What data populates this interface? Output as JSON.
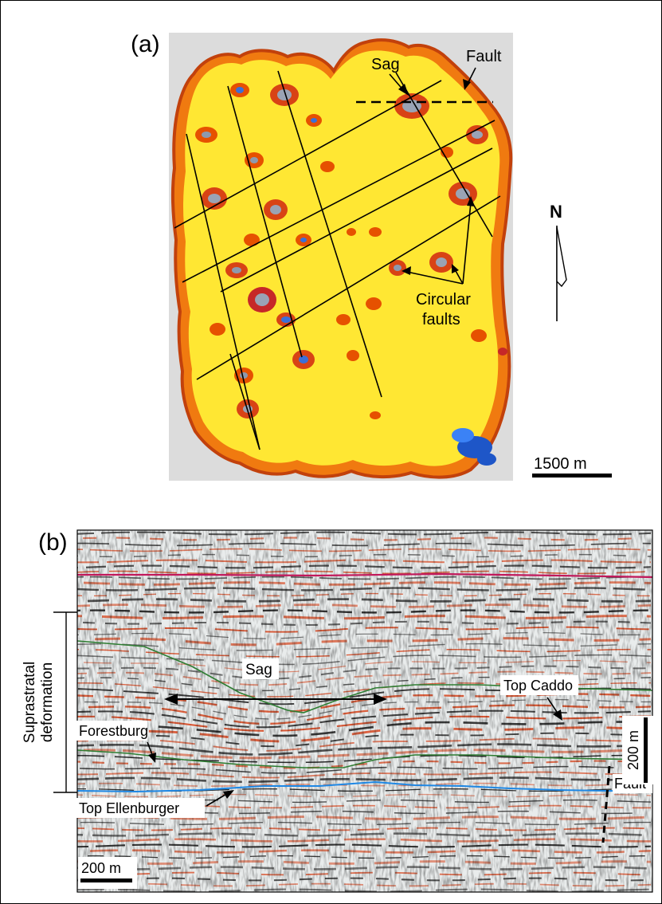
{
  "panel_a": {
    "label": "(a)",
    "sag": "Sag",
    "fault": "Fault",
    "circular_faults_line1": "Circular",
    "circular_faults_line2": "faults",
    "north": "N",
    "scale_bar": "1500 m"
  },
  "panel_b": {
    "label": "(b)",
    "sag": "Sag",
    "top_caddo": "Top Caddo",
    "forestburg": "Forestburg",
    "top_ellenburger": "Top Ellenburger",
    "fault": "Fault",
    "suprastratal_line1": "Suprastratal",
    "suprastratal_line2": "deformation",
    "scale_vertical": "200 m",
    "scale_horizontal": "200 m"
  },
  "colors": {
    "map_yellow": "#ffeb3b",
    "map_orange": "#f57c00",
    "map_red": "#c62828",
    "seismic_red": "#d9502a",
    "horizon_magenta": "#c2185b",
    "horizon_green": "#2e7d32",
    "horizon_blue": "#1e88e5"
  }
}
